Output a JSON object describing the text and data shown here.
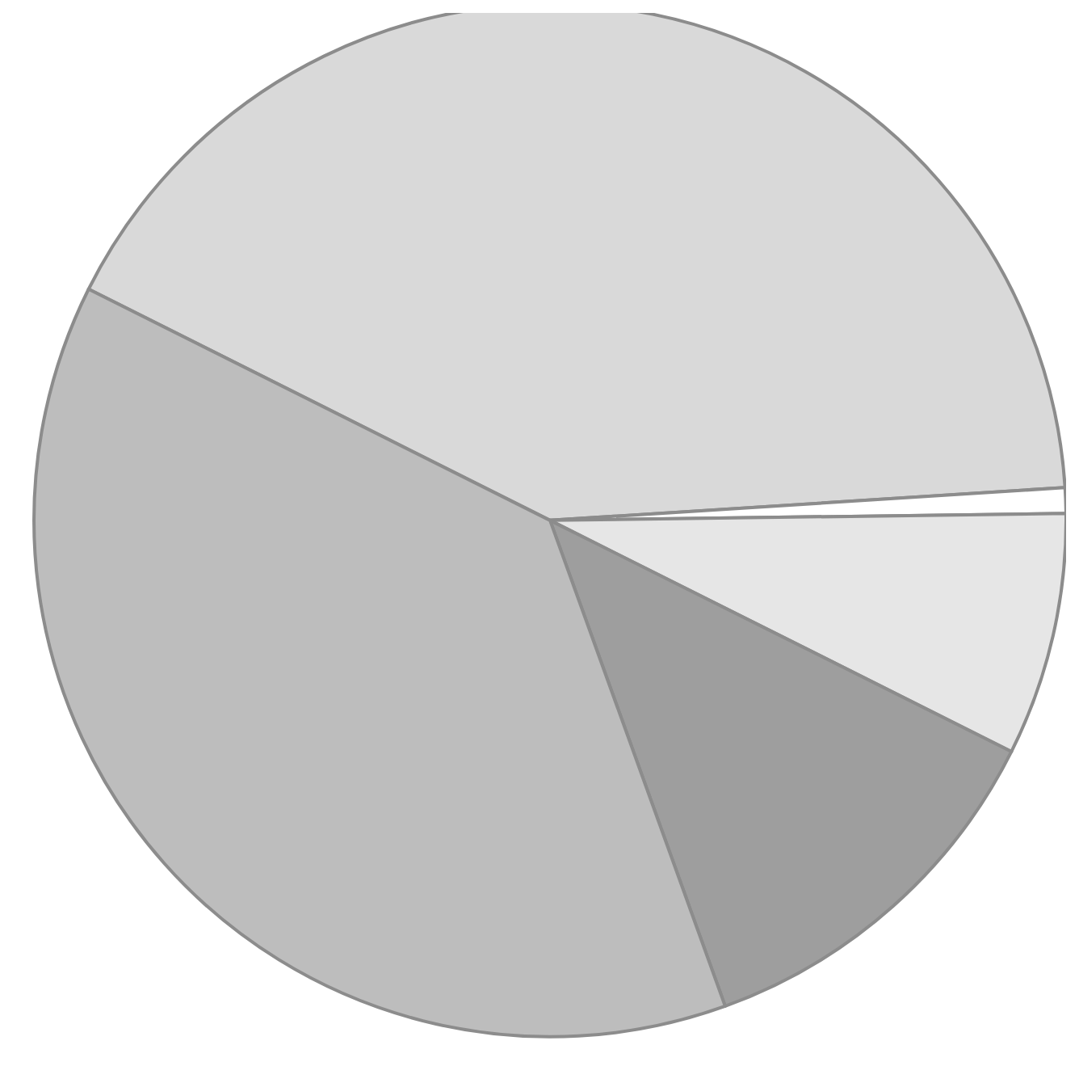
{
  "chart_data": {
    "type": "pie",
    "categories": [
      null,
      null,
      null,
      null,
      null
    ],
    "values": [
      41.6,
      0.8,
      7.6,
      12.1,
      37.9
    ],
    "colors": [
      "#d9d9d9",
      "#ffffff",
      "#e6e6e6",
      "#9e9e9e",
      "#bdbdbd"
    ]
  }
}
